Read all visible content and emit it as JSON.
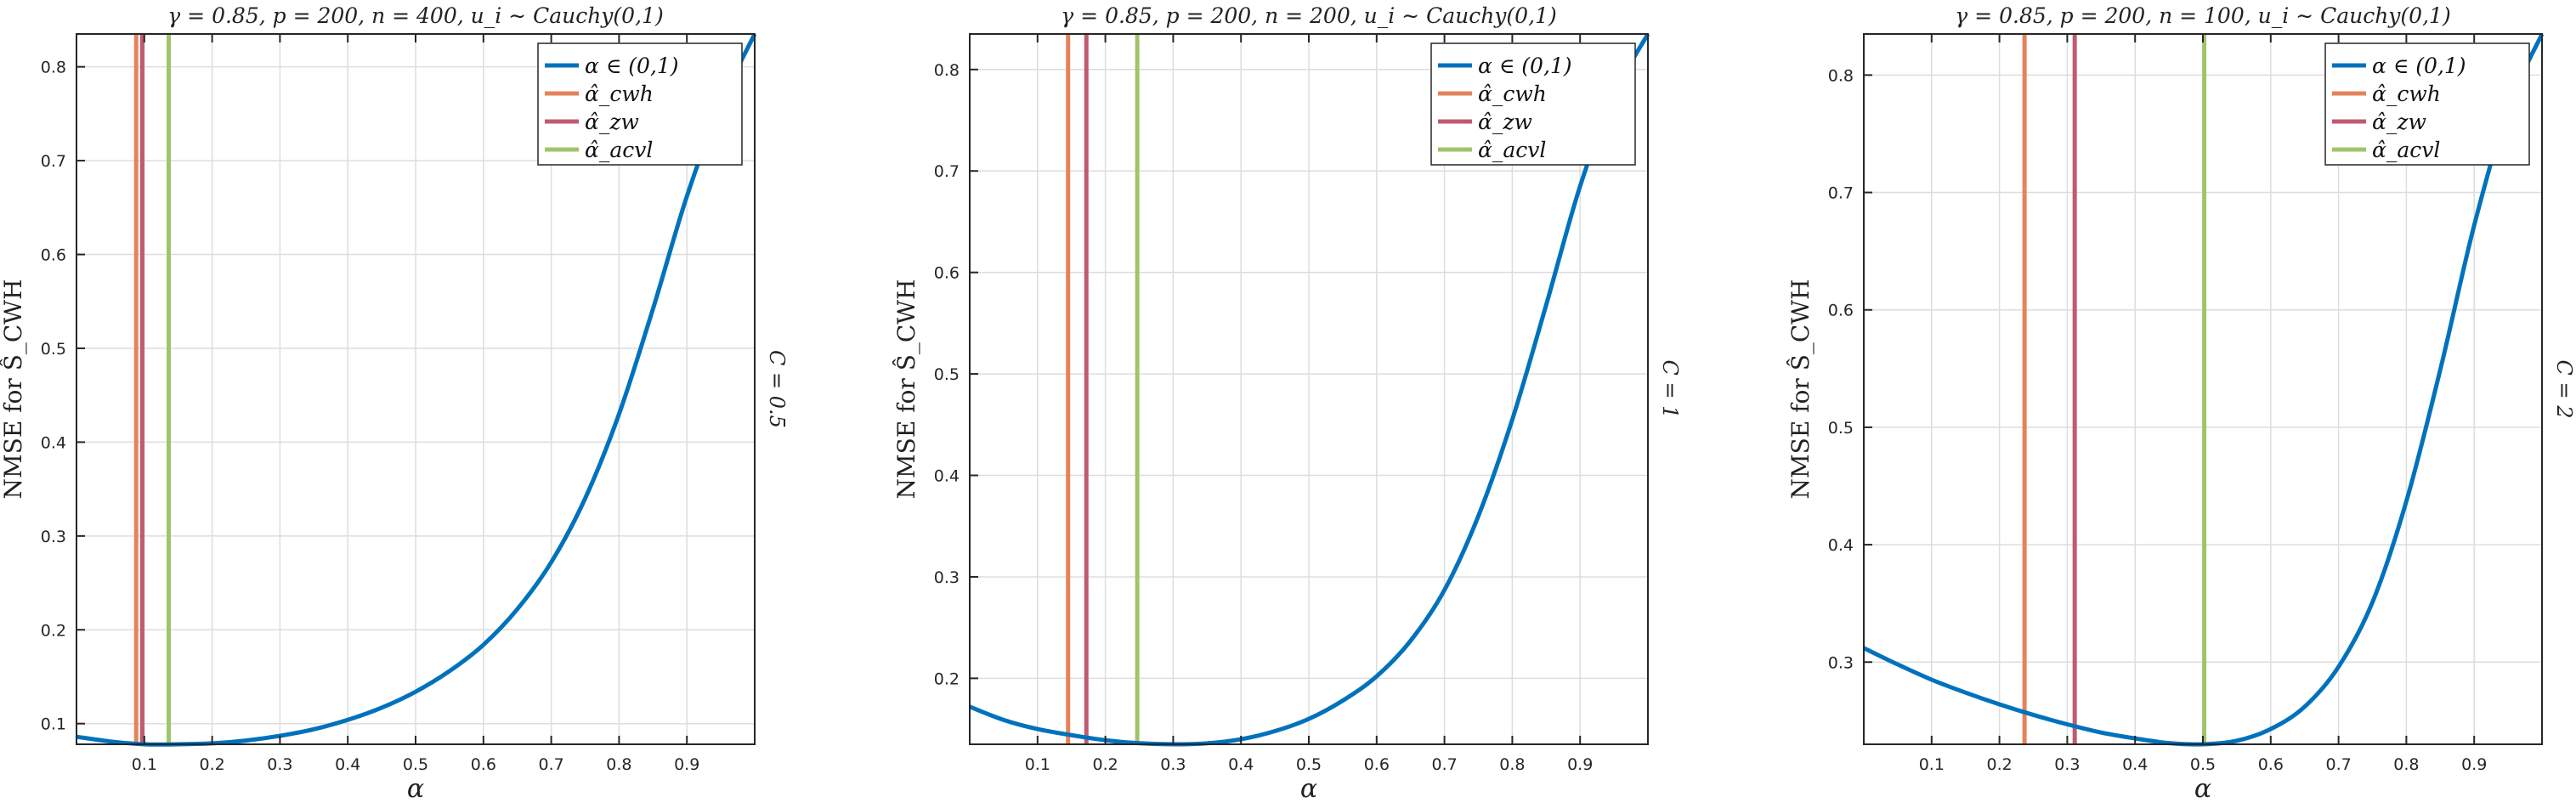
{
  "figure": {
    "panels": [
      {
        "title": "γ = 0.85,  p = 200,  n = 400,  u_i ∼ Cauchy(0,1)",
        "side_label": "C = 0.5"
      },
      {
        "title": "γ = 0.85,  p = 200,  n = 200,  u_i ∼ Cauchy(0,1)",
        "side_label": "C = 1"
      },
      {
        "title": "γ = 0.85,  p = 200,  n = 100,  u_i ∼ Cauchy(0,1)",
        "side_label": "C = 2"
      }
    ],
    "ylabel": "NMSE for Ŝ_CWH",
    "xlabel": "α",
    "legend": [
      "α ∈ (0,1)",
      "α̂_cwh",
      "α̂_zw",
      "α̂_acvl"
    ],
    "colors": {
      "curve": "#0072BD",
      "cwh": "#E6825A",
      "zw": "#C05A6E",
      "acvl": "#A0C46A",
      "grid": "#dddddd",
      "axis": "#262626"
    }
  },
  "chart_data": [
    {
      "type": "line",
      "title": "γ = 0.85, p = 200, n = 400, u_i ~ Cauchy(0,1)",
      "xlabel": "α",
      "ylabel": "NMSE for Ŝ_CWH",
      "side_label": "C = 0.5",
      "xlim": [
        0.0,
        1.0
      ],
      "ylim": [
        0.078,
        0.835
      ],
      "xticks": [
        0.1,
        0.2,
        0.3,
        0.4,
        0.5,
        0.6,
        0.7,
        0.8,
        0.9
      ],
      "yticks": [
        0.1,
        0.2,
        0.3,
        0.4,
        0.5,
        0.6,
        0.7,
        0.8
      ],
      "grid": true,
      "legend_position": "upper right",
      "series": [
        {
          "name": "α ∈ (0,1)",
          "x": [
            0.0,
            0.05,
            0.1,
            0.15,
            0.2,
            0.25,
            0.3,
            0.35,
            0.4,
            0.45,
            0.5,
            0.55,
            0.6,
            0.65,
            0.7,
            0.75,
            0.8,
            0.85,
            0.9,
            0.95,
            1.0
          ],
          "values": [
            0.086,
            0.081,
            0.078,
            0.078,
            0.079,
            0.082,
            0.087,
            0.094,
            0.104,
            0.117,
            0.134,
            0.156,
            0.184,
            0.222,
            0.272,
            0.34,
            0.43,
            0.542,
            0.662,
            0.76,
            0.835
          ]
        }
      ],
      "vlines": [
        {
          "name": "α̂_cwh",
          "x": 0.088
        },
        {
          "name": "α̂_zw",
          "x": 0.097
        },
        {
          "name": "α̂_acvl",
          "x": 0.136
        }
      ]
    },
    {
      "type": "line",
      "title": "γ = 0.85, p = 200, n = 200, u_i ~ Cauchy(0,1)",
      "xlabel": "α",
      "ylabel": "NMSE for Ŝ_CWH",
      "side_label": "C = 1",
      "xlim": [
        0.0,
        1.0
      ],
      "ylim": [
        0.135,
        0.835
      ],
      "xticks": [
        0.1,
        0.2,
        0.3,
        0.4,
        0.5,
        0.6,
        0.7,
        0.8,
        0.9
      ],
      "yticks": [
        0.2,
        0.3,
        0.4,
        0.5,
        0.6,
        0.7,
        0.8
      ],
      "grid": true,
      "legend_position": "upper right",
      "series": [
        {
          "name": "α ∈ (0,1)",
          "x": [
            0.0,
            0.05,
            0.1,
            0.15,
            0.2,
            0.25,
            0.3,
            0.35,
            0.4,
            0.45,
            0.5,
            0.55,
            0.6,
            0.65,
            0.7,
            0.75,
            0.8,
            0.85,
            0.9,
            0.95,
            1.0
          ],
          "values": [
            0.172,
            0.159,
            0.15,
            0.144,
            0.139,
            0.136,
            0.135,
            0.136,
            0.14,
            0.148,
            0.16,
            0.178,
            0.202,
            0.237,
            0.287,
            0.36,
            0.455,
            0.568,
            0.685,
            0.775,
            0.835
          ]
        }
      ],
      "vlines": [
        {
          "name": "α̂_cwh",
          "x": 0.145
        },
        {
          "name": "α̂_zw",
          "x": 0.172
        },
        {
          "name": "α̂_acvl",
          "x": 0.247
        }
      ]
    },
    {
      "type": "line",
      "title": "γ = 0.85, p = 200, n = 100, u_i ~ Cauchy(0,1)",
      "xlabel": "α",
      "ylabel": "NMSE for Ŝ_CWH",
      "side_label": "C = 2",
      "xlim": [
        0.0,
        1.0
      ],
      "ylim": [
        0.23,
        0.835
      ],
      "xticks": [
        0.1,
        0.2,
        0.3,
        0.4,
        0.5,
        0.6,
        0.7,
        0.8,
        0.9
      ],
      "yticks": [
        0.3,
        0.4,
        0.5,
        0.6,
        0.7,
        0.8
      ],
      "grid": true,
      "legend_position": "upper right",
      "series": [
        {
          "name": "α ∈ (0,1)",
          "x": [
            0.0,
            0.05,
            0.1,
            0.15,
            0.2,
            0.25,
            0.3,
            0.35,
            0.4,
            0.45,
            0.5,
            0.55,
            0.6,
            0.65,
            0.7,
            0.75,
            0.8,
            0.85,
            0.9,
            0.95,
            1.0
          ],
          "values": [
            0.312,
            0.298,
            0.285,
            0.274,
            0.264,
            0.255,
            0.247,
            0.24,
            0.235,
            0.231,
            0.23,
            0.233,
            0.243,
            0.262,
            0.296,
            0.351,
            0.437,
            0.549,
            0.672,
            0.772,
            0.835
          ]
        }
      ],
      "vlines": [
        {
          "name": "α̂_cwh",
          "x": 0.237
        },
        {
          "name": "α̂_zw",
          "x": 0.311
        },
        {
          "name": "α̂_acvl",
          "x": 0.502
        }
      ]
    }
  ]
}
